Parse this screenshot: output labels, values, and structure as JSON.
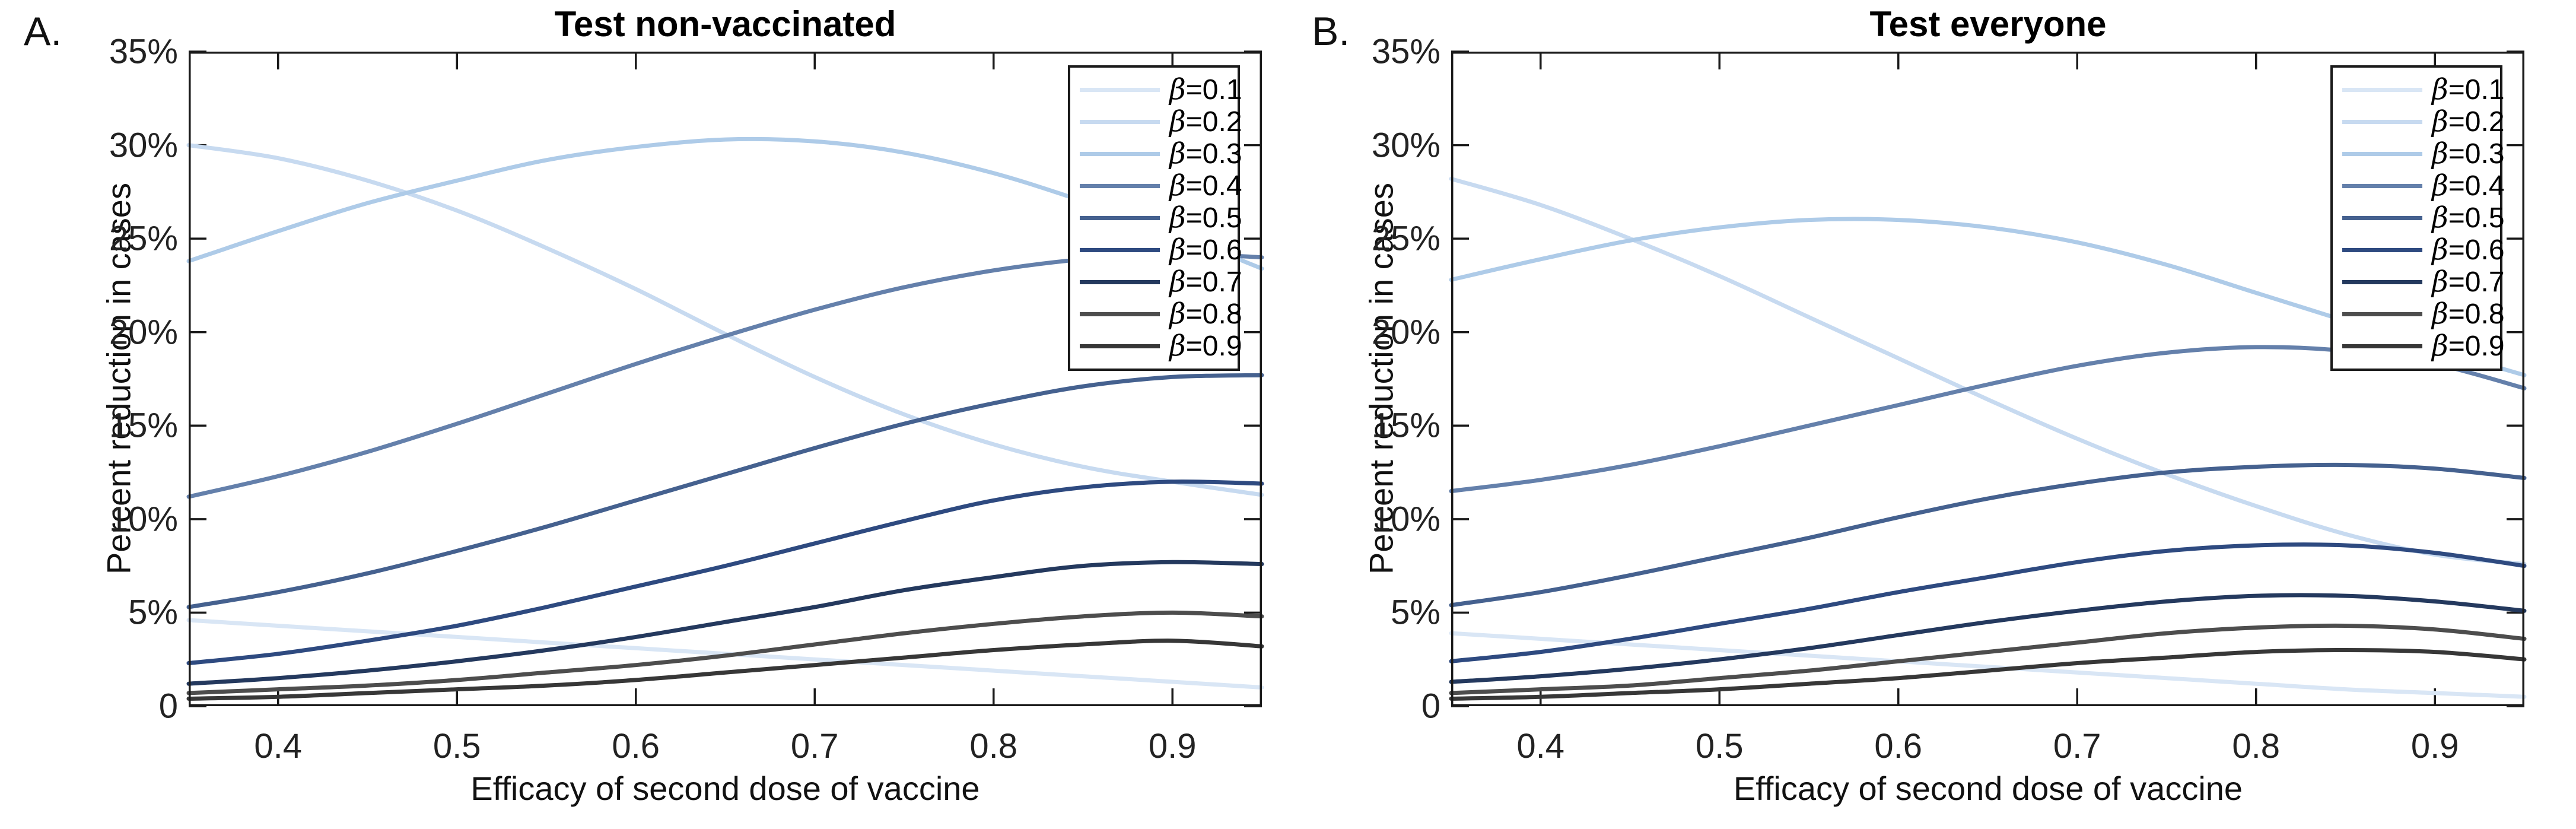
{
  "chart_data": [
    {
      "type": "line",
      "panel_label": "A.",
      "title": "Test non-vaccinated",
      "xlabel": "Efficacy of second dose of vaccine",
      "ylabel": "Percent reduction in cases",
      "xlim": [
        0.35,
        0.95
      ],
      "ylim": [
        0,
        35
      ],
      "grid": false,
      "legend_position": "top-right",
      "x": [
        0.35,
        0.4,
        0.45,
        0.5,
        0.55,
        0.6,
        0.65,
        0.7,
        0.75,
        0.8,
        0.85,
        0.9,
        0.95
      ],
      "xtick_values": [
        0.4,
        0.5,
        0.6,
        0.7,
        0.8,
        0.9
      ],
      "xtick_labels": [
        "0.4",
        "0.5",
        "0.6",
        "0.7",
        "0.8",
        "0.9"
      ],
      "ytick_values": [
        0,
        5,
        10,
        15,
        20,
        25,
        30,
        35
      ],
      "ytick_labels": [
        "0",
        "5%",
        "10%",
        "15%",
        "20%",
        "25%",
        "30%",
        "35%"
      ],
      "series": [
        {
          "name": "β=0.1",
          "color": "#d9e6f5",
          "values": [
            4.6,
            4.3,
            4.0,
            3.7,
            3.4,
            3.1,
            2.8,
            2.5,
            2.2,
            1.9,
            1.6,
            1.3,
            1.0
          ]
        },
        {
          "name": "β=0.2",
          "color": "#c7daf0",
          "values": [
            30.0,
            29.3,
            28.1,
            26.5,
            24.5,
            22.3,
            19.9,
            17.6,
            15.6,
            14.0,
            12.8,
            12.0,
            11.3
          ]
        },
        {
          "name": "β=0.3",
          "color": "#aecbe8",
          "values": [
            23.8,
            25.4,
            26.9,
            28.1,
            29.2,
            29.9,
            30.3,
            30.2,
            29.6,
            28.5,
            27.0,
            25.3,
            23.4
          ]
        },
        {
          "name": "β=0.4",
          "color": "#6480ab",
          "values": [
            11.2,
            12.3,
            13.6,
            15.1,
            16.7,
            18.3,
            19.8,
            21.2,
            22.4,
            23.3,
            23.9,
            24.2,
            24.0
          ]
        },
        {
          "name": "β=0.5",
          "color": "#45618f",
          "values": [
            5.3,
            6.1,
            7.1,
            8.3,
            9.6,
            11.0,
            12.4,
            13.8,
            15.1,
            16.2,
            17.1,
            17.6,
            17.7
          ]
        },
        {
          "name": "β=0.6",
          "color": "#2e4a80",
          "values": [
            2.3,
            2.8,
            3.5,
            4.3,
            5.3,
            6.4,
            7.5,
            8.7,
            9.9,
            11.0,
            11.7,
            12.0,
            11.9
          ]
        },
        {
          "name": "β=0.7",
          "color": "#24395e",
          "values": [
            1.2,
            1.5,
            1.9,
            2.4,
            3.0,
            3.7,
            4.5,
            5.3,
            6.2,
            6.9,
            7.5,
            7.7,
            7.6
          ]
        },
        {
          "name": "β=0.8",
          "color": "#4d4d4d",
          "values": [
            0.7,
            0.9,
            1.1,
            1.4,
            1.8,
            2.2,
            2.7,
            3.3,
            3.9,
            4.4,
            4.8,
            5.0,
            4.8
          ]
        },
        {
          "name": "β=0.9",
          "color": "#373737",
          "values": [
            0.4,
            0.5,
            0.7,
            0.9,
            1.1,
            1.4,
            1.8,
            2.2,
            2.6,
            3.0,
            3.3,
            3.5,
            3.2
          ]
        }
      ]
    },
    {
      "type": "line",
      "panel_label": "B.",
      "title": "Test everyone",
      "xlabel": "Efficacy of second dose of vaccine",
      "ylabel": "Percent reduction in cases",
      "xlim": [
        0.35,
        0.95
      ],
      "ylim": [
        0,
        35
      ],
      "grid": false,
      "legend_position": "top-right",
      "x": [
        0.35,
        0.4,
        0.45,
        0.5,
        0.55,
        0.6,
        0.65,
        0.7,
        0.75,
        0.8,
        0.85,
        0.9,
        0.95
      ],
      "xtick_values": [
        0.4,
        0.5,
        0.6,
        0.7,
        0.8,
        0.9
      ],
      "xtick_labels": [
        "0.4",
        "0.5",
        "0.6",
        "0.7",
        "0.8",
        "0.9"
      ],
      "ytick_values": [
        0,
        5,
        10,
        15,
        20,
        25,
        30,
        35
      ],
      "ytick_labels": [
        "0",
        "5%",
        "10%",
        "15%",
        "20%",
        "25%",
        "30%",
        "35%"
      ],
      "series": [
        {
          "name": "β=0.1",
          "color": "#d9e6f5",
          "values": [
            3.9,
            3.6,
            3.3,
            3.0,
            2.7,
            2.4,
            2.1,
            1.8,
            1.5,
            1.2,
            0.9,
            0.7,
            0.5
          ]
        },
        {
          "name": "β=0.2",
          "color": "#c7daf0",
          "values": [
            28.2,
            26.8,
            25.0,
            23.0,
            20.8,
            18.6,
            16.4,
            14.3,
            12.4,
            10.7,
            9.2,
            8.1,
            7.6
          ]
        },
        {
          "name": "β=0.3",
          "color": "#aecbe8",
          "values": [
            22.8,
            23.9,
            24.9,
            25.6,
            26.0,
            26.0,
            25.6,
            24.8,
            23.6,
            22.1,
            20.6,
            19.1,
            17.7
          ]
        },
        {
          "name": "β=0.4",
          "color": "#6480ab",
          "values": [
            11.5,
            12.1,
            12.9,
            13.9,
            15.0,
            16.1,
            17.2,
            18.2,
            18.9,
            19.2,
            19.0,
            18.3,
            17.0
          ]
        },
        {
          "name": "β=0.5",
          "color": "#45618f",
          "values": [
            5.4,
            6.1,
            7.0,
            8.0,
            9.0,
            10.1,
            11.1,
            11.9,
            12.5,
            12.8,
            12.9,
            12.7,
            12.2
          ]
        },
        {
          "name": "β=0.6",
          "color": "#2e4a80",
          "values": [
            2.4,
            2.9,
            3.6,
            4.4,
            5.2,
            6.1,
            6.9,
            7.7,
            8.3,
            8.6,
            8.6,
            8.2,
            7.5
          ]
        },
        {
          "name": "β=0.7",
          "color": "#24395e",
          "values": [
            1.3,
            1.6,
            2.0,
            2.5,
            3.1,
            3.8,
            4.5,
            5.1,
            5.6,
            5.9,
            5.9,
            5.6,
            5.1
          ]
        },
        {
          "name": "β=0.8",
          "color": "#4d4d4d",
          "values": [
            0.7,
            0.9,
            1.1,
            1.5,
            1.9,
            2.4,
            2.9,
            3.4,
            3.9,
            4.2,
            4.3,
            4.1,
            3.6
          ]
        },
        {
          "name": "β=0.9",
          "color": "#373737",
          "values": [
            0.4,
            0.5,
            0.7,
            0.9,
            1.2,
            1.5,
            1.9,
            2.3,
            2.6,
            2.9,
            3.0,
            2.9,
            2.5
          ]
        }
      ]
    }
  ]
}
